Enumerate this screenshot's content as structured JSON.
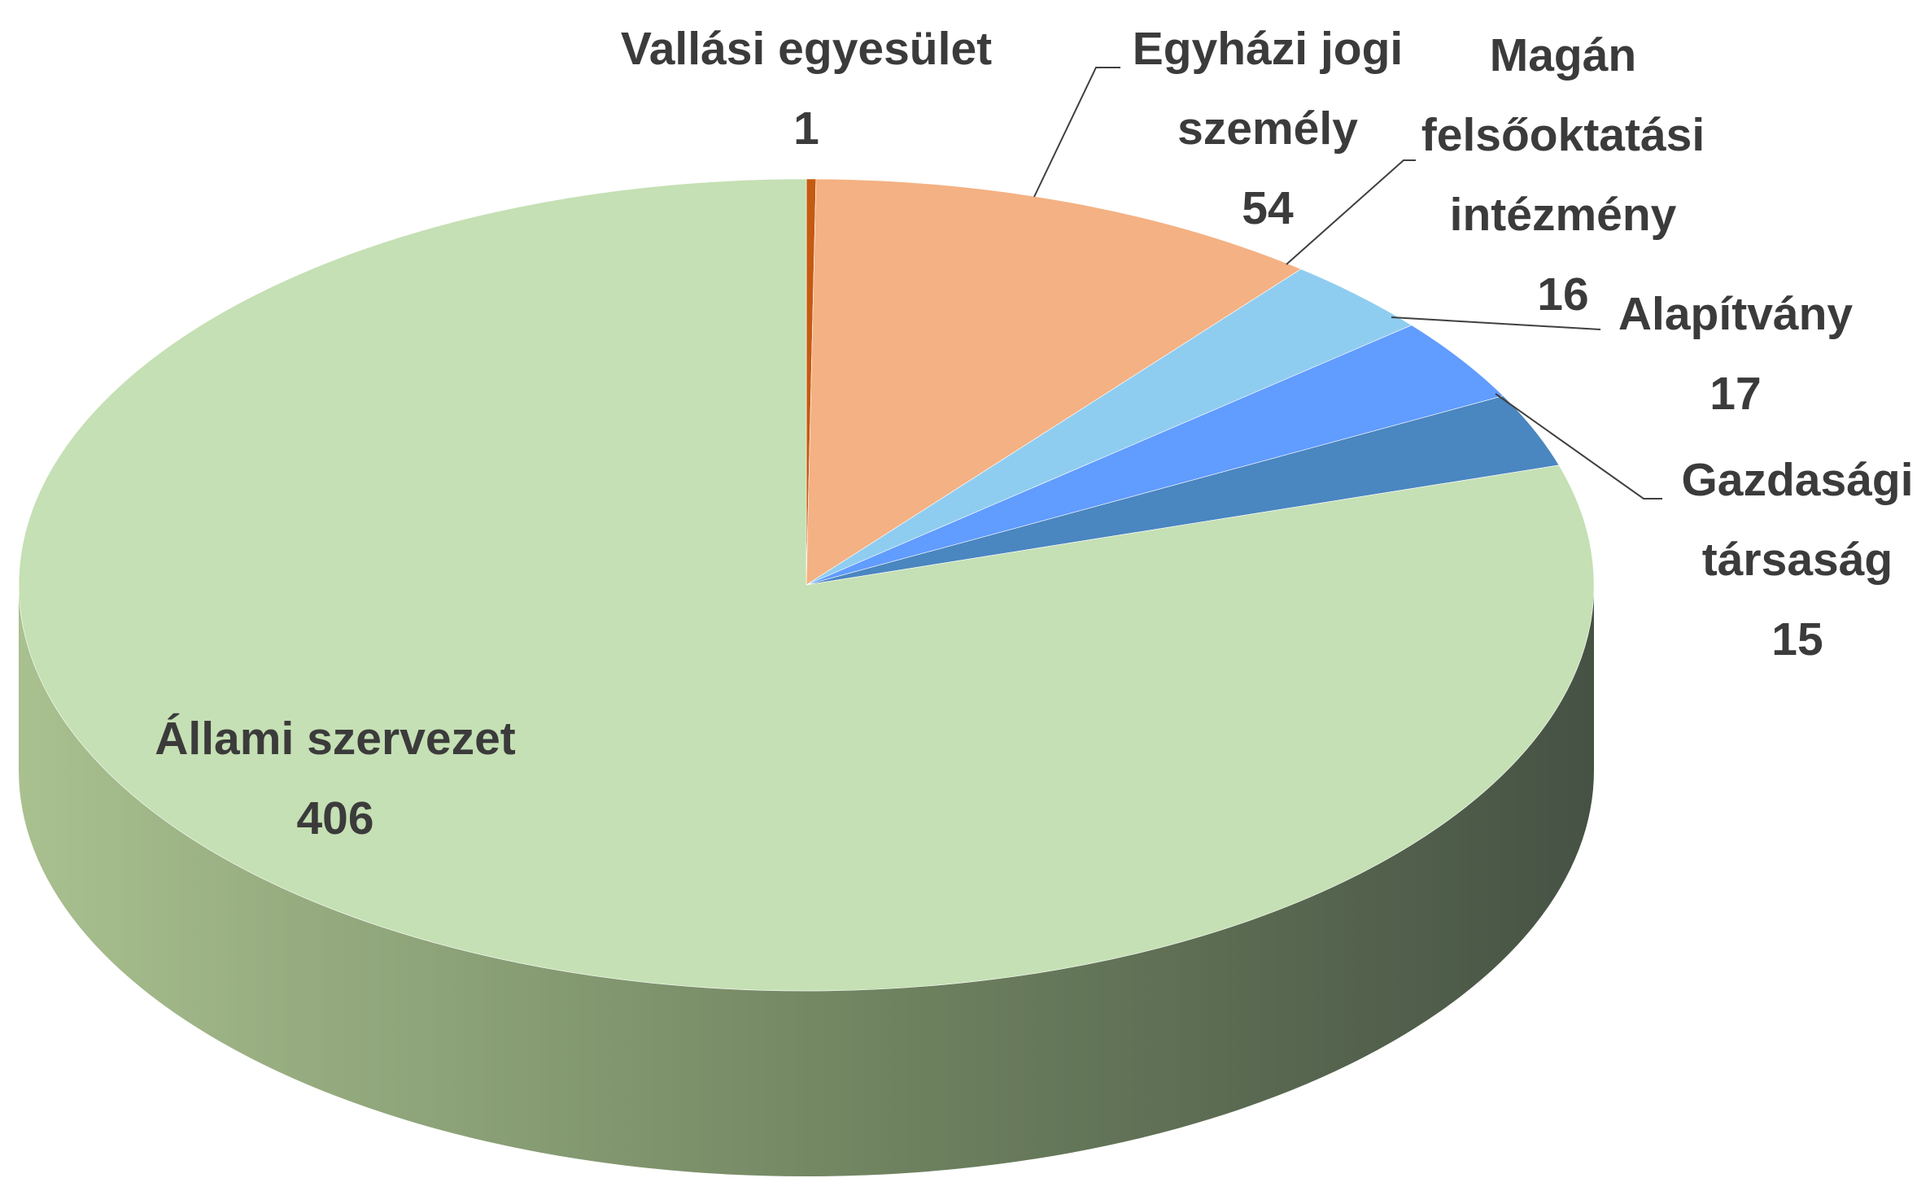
{
  "chart_data": {
    "type": "pie3d",
    "categories": [
      "Vallási egyesület",
      "Egyházi jogi személy",
      "Magán felsőoktatási intézmény",
      "Alapítvány",
      "Gazdasági társaság",
      "Állami szervezet"
    ],
    "values": [
      1,
      54,
      16,
      17,
      15,
      406
    ],
    "colors": [
      "#c55a11",
      "#f4b183",
      "#8fcdf0",
      "#619cff",
      "#4a86c0",
      "#c5e0b4"
    ]
  }
}
